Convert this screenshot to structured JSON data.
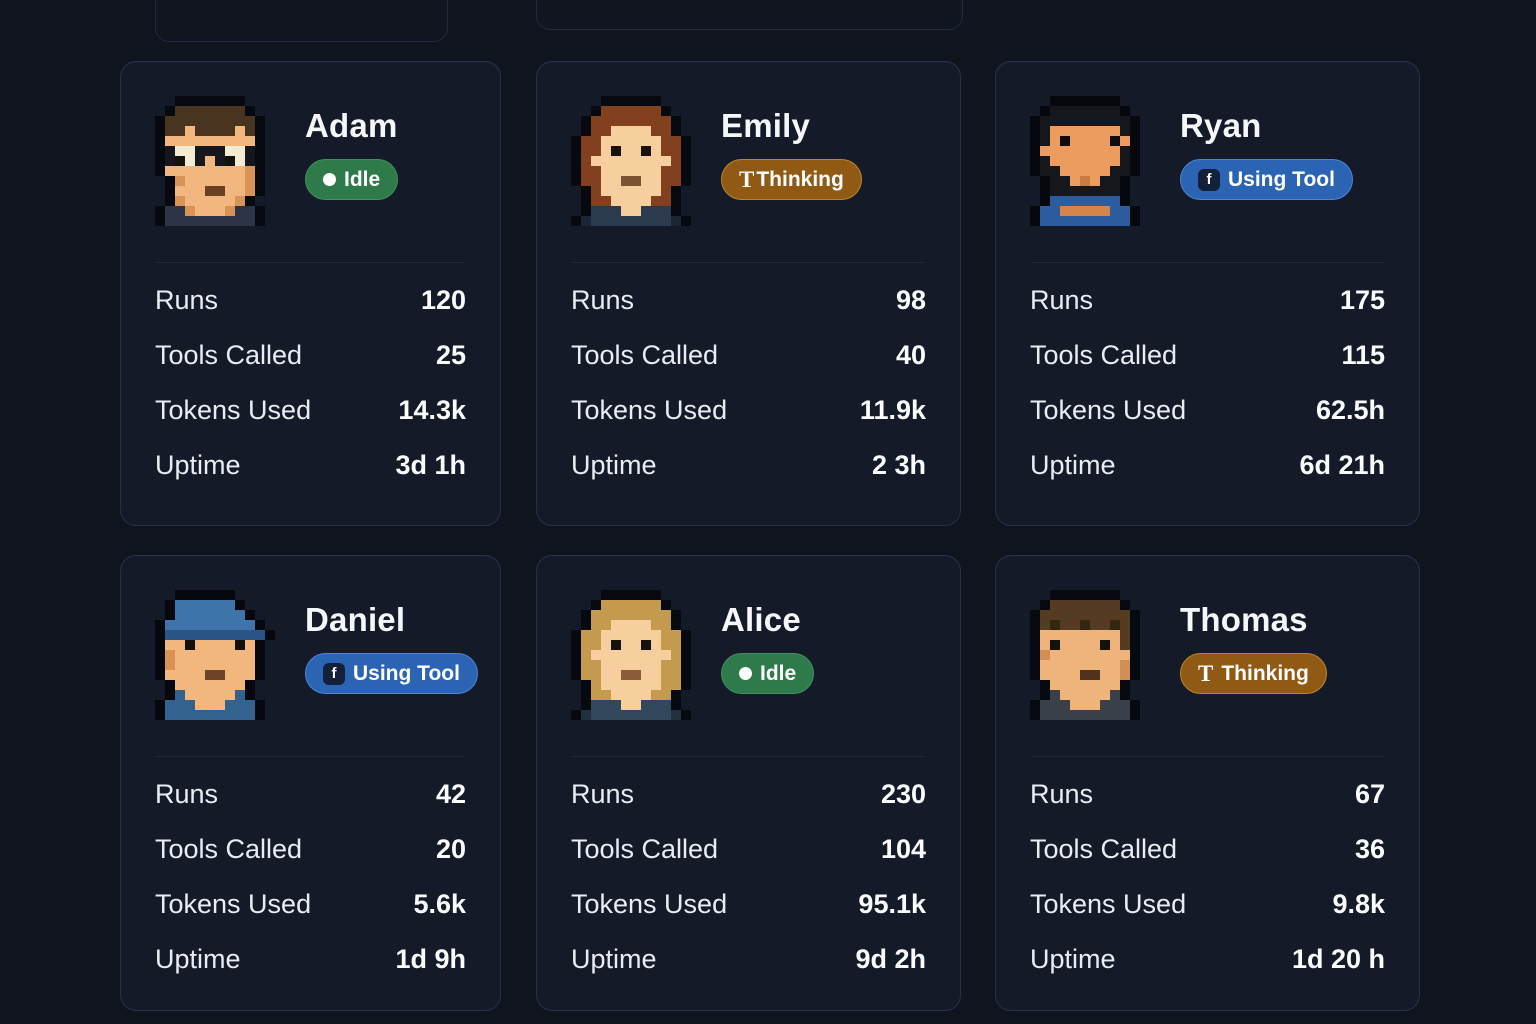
{
  "colors": {
    "page_bg": "#10141e",
    "card_bg": "#151a29",
    "card_border": "#28314b",
    "divider": "#20283c",
    "label_text": "#e9edf3",
    "value_text": "#fbfcfe",
    "name_text": "#f5f7fa"
  },
  "statuses": {
    "idle": {
      "label": "Idle",
      "bg": "#2e7a4b",
      "border": "#41905f",
      "icon": "dot"
    },
    "thinking": {
      "label": "Thinking",
      "bg": "#905a15",
      "border": "#b9862f",
      "icon": "T-glyph",
      "glyph": "T"
    },
    "using_tool": {
      "label": "Using Tool",
      "bg": "#2b64b2",
      "border": "#4d85d6",
      "icon": "tool-chip",
      "glyph": "f",
      "chip_bg": "#132039"
    }
  },
  "cards": [
    {
      "name": "Adam",
      "status": "idle",
      "status_label": "Idle",
      "stats": [
        {
          "label": "Runs",
          "value": "120"
        },
        {
          "label": "Tools Called",
          "value": "25"
        },
        {
          "label": "Tokens Used",
          "value": "14.3k"
        },
        {
          "label": "Uptime",
          "value": "3d 1h"
        }
      ],
      "avatar": {
        "cell": 10,
        "palette": {
          "K": "#070910",
          "H": "#49341f",
          "G": "#2e2012",
          "S": "#f2b77f",
          "T": "#d99356",
          "W": "#f3ecd2",
          "B": "#16161d",
          "E": "#15120e",
          "M": "#6b3f22",
          "C": "#2b3547"
        },
        "rows": [
          "..KKKKKKK...",
          ".KHHHHHHHK..",
          "KHHHHHHHHHK.",
          "KHHSHHHHSHK.",
          "KSSSSSSSSSK.",
          "KBWWBBBWWBK.",
          "KBEWBSBEWBK.",
          "KSSSSSSSSTK.",
          ".KTSSSSSSTK.",
          ".KSSSMMSSTK.",
          ".KTSSSSSTK..",
          "KCCTSSSTCCK.",
          "KCCCCCCCCCK."
        ]
      }
    },
    {
      "name": "Emily",
      "status": "thinking",
      "status_label": "Thinking",
      "stats": [
        {
          "label": "Runs",
          "value": "98"
        },
        {
          "label": "Tools Called",
          "value": "40"
        },
        {
          "label": "Tokens Used",
          "value": "11.9k"
        },
        {
          "label": "Uptime",
          "value": "2 3h"
        }
      ],
      "avatar": {
        "cell": 10,
        "palette": {
          "K": "#070910",
          "H": "#83401f",
          "S": "#f7cf9e",
          "E": "#1a130d",
          "M": "#7c5233",
          "C": "#2c3a4d",
          "D": "#1b2634"
        },
        "rows": [
          "...KKKKKK...",
          "..KHHHHHHK..",
          ".KHHHHHHHHK.",
          ".KHHSSSSHHK.",
          "KHHSSSSSSHHK",
          "KHHSESSESHHK",
          "KHSSSSSSSSHK",
          "KHHSSSSSSHHK",
          "KHHSSMMSSHHK",
          ".KHSSSSSSHK.",
          ".KHHSSSSHHK.",
          ".KCCCSSCCCK.",
          "KDCCCCCCCCDK"
        ]
      }
    },
    {
      "name": "Ryan",
      "status": "using_tool",
      "status_label": "Using Tool",
      "stats": [
        {
          "label": "Runs",
          "value": "175"
        },
        {
          "label": "Tools Called",
          "value": "115"
        },
        {
          "label": "Tokens Used",
          "value": "62.5h"
        },
        {
          "label": "Uptime",
          "value": "6d 21h"
        }
      ],
      "avatar": {
        "cell": 10,
        "palette": {
          "K": "#06080e",
          "G": "#16171d",
          "S": "#eb9c5e",
          "T": "#d6854a",
          "E": "#0f0c09",
          "M": "#c97b42",
          "C": "#2d5c9e"
        },
        "rows": [
          "..KKKKKKK...",
          ".KGGGGGGGK..",
          "KGGGGGGGGGK.",
          "KGSSSSSSSGK.",
          "KGSESSSSESK.",
          "KSSSSSSSSGK.",
          "KGSSSSSSSGK.",
          "KGGSSSSSGGK.",
          ".KGGSMSGGK..",
          ".KGGGGGGGK..",
          ".KCCCCCCCK..",
          "KCCTTTTTCCK.",
          "KCCCCCCCCCK."
        ]
      }
    },
    {
      "name": "Daniel",
      "status": "using_tool",
      "status_label": "Using Tool",
      "stats": [
        {
          "label": "Runs",
          "value": "42"
        },
        {
          "label": "Tools Called",
          "value": "20"
        },
        {
          "label": "Tokens Used",
          "value": "5.6k"
        },
        {
          "label": "Uptime",
          "value": "1d 9h"
        }
      ],
      "avatar": {
        "cell": 10,
        "palette": {
          "K": "#06080e",
          "A": "#3f74ab",
          "B": "#2a5486",
          "S": "#f2b77d",
          "T": "#da9254",
          "E": "#120e0a",
          "M": "#6b4526",
          "C": "#33628f"
        },
        "rows": [
          "..KKKKKK....",
          ".KAAAAAAK...",
          ".KAAAAAAAK..",
          "KAAAAAAAAAK.",
          "KBBBBBBBBBBK",
          "KSSESSSSESK.",
          "KTSSSSSSSSK.",
          "KTSSSSSSSSK.",
          "KSSSSMMSSSK.",
          ".KSSSSSSSK..",
          ".KCSSSSSCK..",
          "KCCCSSSCCCK.",
          "KCCCCCCCCCK."
        ]
      }
    },
    {
      "name": "Alice",
      "status": "idle",
      "status_label": "Idle",
      "stats": [
        {
          "label": "Runs",
          "value": "230"
        },
        {
          "label": "Tools Called",
          "value": "104"
        },
        {
          "label": "Tokens Used",
          "value": "95.1k"
        },
        {
          "label": "Uptime",
          "value": "9d 2h"
        }
      ],
      "avatar": {
        "cell": 10,
        "palette": {
          "K": "#070910",
          "H": "#c39a4e",
          "S": "#f7cf9e",
          "E": "#17110c",
          "M": "#8a5c3a",
          "C": "#32465c",
          "D": "#20303f"
        },
        "rows": [
          "...KKKKKK...",
          "..KHHHHHHK..",
          ".KHHHHHHHHK.",
          ".KHHSSSSHHK.",
          "KHHSSSSSSHHK",
          "KHHSESSESHHK",
          "KHSSSSSSSSHK",
          "KHHSSSSSSHHK",
          "KHHSSMMSSHHK",
          ".KHSSSSSSHHK",
          ".KHHSSSSHHK.",
          ".KCCCSSCCCK.",
          "KDCCCCCCCCDK"
        ]
      }
    },
    {
      "name": "Thomas",
      "status": "thinking",
      "status_label": "Thinking",
      "stats": [
        {
          "label": "Runs",
          "value": "67"
        },
        {
          "label": "Tools Called",
          "value": "36"
        },
        {
          "label": "Tokens Used",
          "value": "9.8k"
        },
        {
          "label": "Uptime",
          "value": "1d 20 h"
        }
      ],
      "avatar": {
        "cell": 10,
        "palette": {
          "K": "#070910",
          "H": "#553b22",
          "G": "#35260f",
          "S": "#efb47c",
          "T": "#d28f55",
          "E": "#17110c",
          "M": "#50331d",
          "C": "#3a4049"
        },
        "rows": [
          "..KKKKKKK...",
          ".KHHHHHHHK..",
          "KHHHHHHHHHK.",
          "KHGHHGHHGHK.",
          "KSSSSSSSSHK.",
          "KSESSSSESHK.",
          "KTSSSSSSSSK.",
          "KSSSSSSSSTK.",
          "KSSSSMMSSTK.",
          ".KSSSSSSSK..",
          ".KCSSSSSCK..",
          "KCCCSSSCCCK.",
          "KCCCCCCCCCK."
        ]
      }
    }
  ]
}
